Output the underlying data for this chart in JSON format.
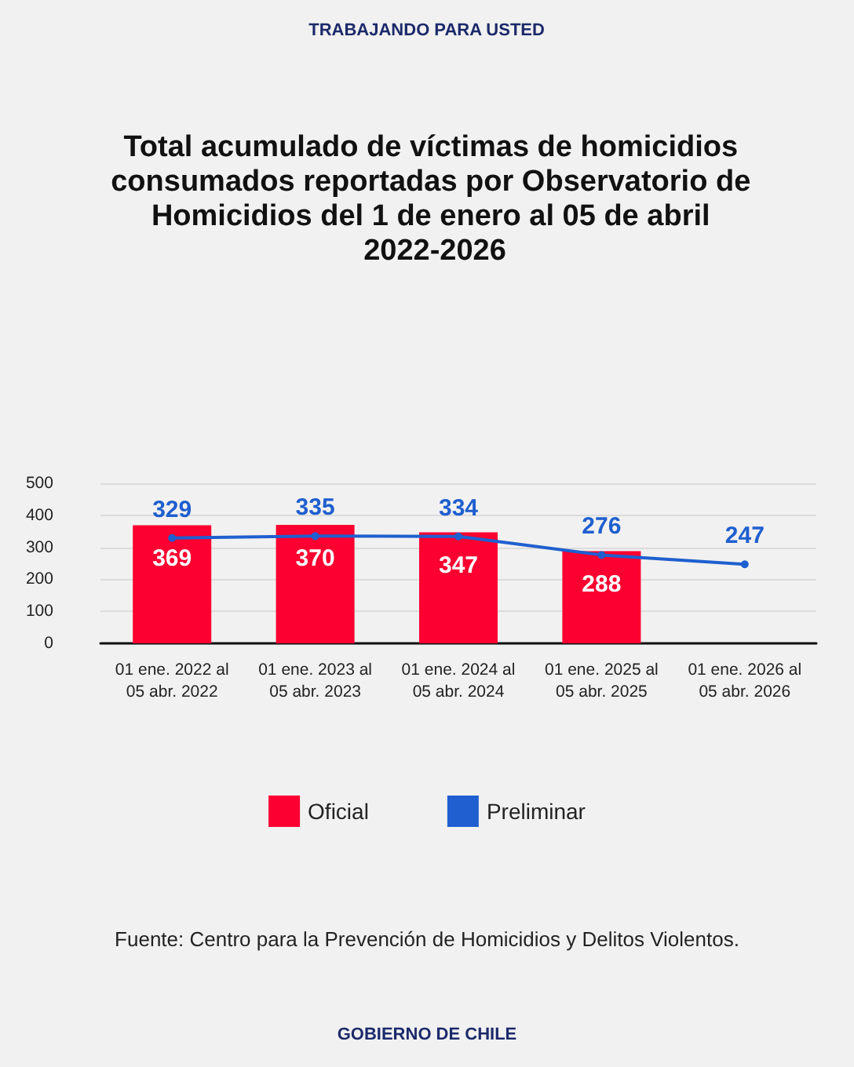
{
  "chart_data": {
    "type": "bar",
    "title": "Total acumulado de víctimas de homicidios consumados reportadas por Observatorio de Homicidios del 1 de enero al 05 de abril 2022-2026",
    "categories": [
      "01 ene. 2022 al\n05 abr. 2022",
      "01 ene. 2023 al\n05 abr. 2023",
      "01 ene. 2024 al\n05 abr. 2024",
      "01 ene. 2025 al\n05 abr. 2025",
      "01 ene. 2026 al\n05 abr. 2026"
    ],
    "series": [
      {
        "name": "Oficial",
        "color": "#fb0030",
        "values": [
          369,
          370,
          347,
          288,
          null
        ]
      },
      {
        "name": "Preliminar",
        "type": "line",
        "color": "#1f5fcf",
        "values": [
          329,
          335,
          334,
          276,
          247
        ]
      }
    ],
    "ylim": [
      0,
      500
    ],
    "yticks": [
      0,
      100,
      200,
      300,
      400,
      500
    ],
    "grid": "y",
    "legend": "bottom",
    "data_labels": true,
    "marker": "circle",
    "line_style": "solid",
    "annotations": [
      "TRABAJANDO PARA USTED",
      "Fuente: Centro para la Prevención de Homicidios y Delitos Violentos.",
      "GOBIERNO DE CHILE"
    ]
  }
}
